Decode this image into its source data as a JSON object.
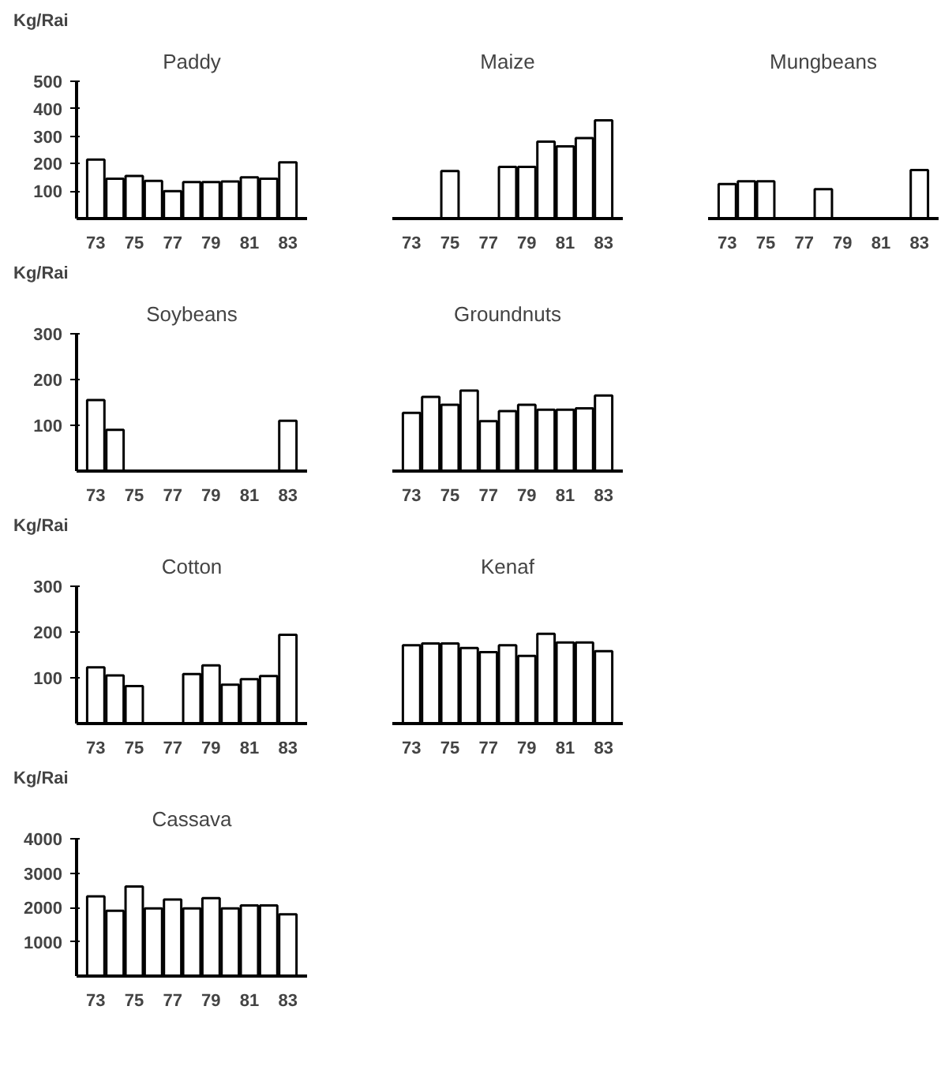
{
  "chart_data": [
    {
      "type": "bar",
      "title": "Paddy",
      "ylabel": "Kg/Rai",
      "x": [
        73,
        74,
        75,
        76,
        77,
        78,
        79,
        80,
        81,
        82,
        83
      ],
      "values": [
        215,
        145,
        155,
        137,
        100,
        133,
        133,
        135,
        150,
        145,
        205
      ],
      "color": "#ffffff",
      "xlim": [
        72,
        84
      ],
      "xticks": [
        73,
        75,
        77,
        79,
        81,
        83
      ],
      "ylim": [
        0,
        500
      ],
      "yticks": [
        100,
        200,
        300,
        400,
        500
      ]
    },
    {
      "type": "bar",
      "title": "Maize",
      "x": [
        75,
        78,
        79,
        80,
        81,
        82,
        83
      ],
      "values": [
        173,
        188,
        188,
        280,
        263,
        293,
        358
      ],
      "color": "#ffffff",
      "xlim": [
        72,
        84
      ],
      "xticks": [
        73,
        75,
        77,
        79,
        81,
        83
      ],
      "ylim": [
        0,
        500
      ],
      "yticks": [
        100,
        200,
        300,
        400,
        500
      ],
      "tick_labels": "x"
    },
    {
      "type": "bar",
      "title": "Mungbeans",
      "x": [
        73,
        74,
        75,
        78,
        83
      ],
      "values": [
        126,
        136,
        136,
        107,
        177
      ],
      "color": "#ffffff",
      "xlim": [
        72,
        84
      ],
      "xticks": [
        73,
        75,
        77,
        79,
        81,
        83
      ],
      "ylim": [
        0,
        500
      ],
      "yticks": [
        100,
        200,
        300,
        400,
        500
      ],
      "tick_labels": "x"
    },
    {
      "type": "bar",
      "title": "Soybeans",
      "ylabel": "Kg/Rai",
      "x": [
        73,
        74,
        83
      ],
      "values": [
        155,
        90,
        110
      ],
      "color": "#ffffff",
      "xlim": [
        72,
        84
      ],
      "xticks": [
        73,
        75,
        77,
        79,
        81,
        83
      ],
      "ylim": [
        0,
        300
      ],
      "yticks": [
        100,
        200,
        300
      ]
    },
    {
      "type": "bar",
      "title": "Groundnuts",
      "x": [
        73,
        74,
        75,
        76,
        77,
        78,
        79,
        80,
        81,
        82,
        83
      ],
      "values": [
        127,
        162,
        145,
        176,
        109,
        131,
        145,
        134,
        134,
        137,
        165
      ],
      "color": "#ffffff",
      "xlim": [
        72,
        84
      ],
      "xticks": [
        73,
        75,
        77,
        79,
        81,
        83
      ],
      "ylim": [
        0,
        300
      ],
      "yticks": [
        100,
        200,
        300
      ],
      "tick_labels": "x"
    },
    {
      "type": "bar",
      "title": "Cotton",
      "ylabel": "Kg/Rai",
      "x": [
        73,
        74,
        75,
        78,
        79,
        80,
        81,
        82,
        83
      ],
      "values": [
        123,
        105,
        82,
        108,
        127,
        85,
        97,
        104,
        194
      ],
      "color": "#ffffff",
      "xlim": [
        72,
        84
      ],
      "xticks": [
        73,
        75,
        77,
        79,
        81,
        83
      ],
      "ylim": [
        0,
        300
      ],
      "yticks": [
        100,
        200,
        300
      ]
    },
    {
      "type": "bar",
      "title": "Kenaf",
      "x": [
        73,
        74,
        75,
        76,
        77,
        78,
        79,
        80,
        81,
        82,
        83
      ],
      "values": [
        171,
        175,
        175,
        165,
        156,
        171,
        148,
        196,
        177,
        177,
        158
      ],
      "color": "#ffffff",
      "xlim": [
        72,
        84
      ],
      "xticks": [
        73,
        75,
        77,
        79,
        81,
        83
      ],
      "ylim": [
        0,
        300
      ],
      "yticks": [
        100,
        200,
        300
      ],
      "tick_labels": "x"
    },
    {
      "type": "bar",
      "title": "Cassava",
      "ylabel": "Kg/Rai",
      "x": [
        73,
        74,
        75,
        76,
        77,
        78,
        79,
        80,
        81,
        82,
        83
      ],
      "values": [
        2320,
        1900,
        2610,
        1970,
        2230,
        1970,
        2270,
        1970,
        2060,
        2060,
        1800
      ],
      "color": "#ffffff",
      "xlim": [
        72,
        84
      ],
      "xticks": [
        73,
        75,
        77,
        79,
        81,
        83
      ],
      "ylim": [
        0,
        4000
      ],
      "yticks": [
        1000,
        2000,
        3000,
        4000
      ]
    }
  ]
}
